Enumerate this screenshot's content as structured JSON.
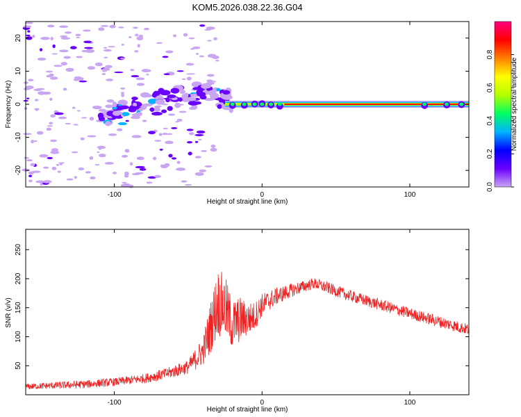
{
  "figure_title": "KOM5.2026.038.22.36.G04",
  "chart_data": [
    {
      "type": "heatmap",
      "title": "KOM5.2026.038.22.36.G04",
      "xlabel": "Height of straight line (km)",
      "ylabel": "Frequency (Hz)",
      "xlim": [
        -160,
        140
      ],
      "ylim": [
        -25,
        25
      ],
      "x_ticks": [
        -100,
        0,
        100
      ],
      "y_ticks": [
        -20,
        -10,
        0,
        10,
        20
      ],
      "grid": false,
      "colorbar": {
        "label": "Normalized spectral amplitude",
        "range": [
          0,
          1
        ],
        "ticks": [
          0.0,
          0.2,
          0.4,
          0.6,
          0.8
        ],
        "colormap": [
          "#ffffff",
          "#c9a6f2",
          "#6a00ff",
          "#0000ff",
          "#00b4ff",
          "#00ff60",
          "#b4ff00",
          "#ffff00",
          "#ff7f00",
          "#ff0000",
          "#ff0080"
        ]
      },
      "features": [
        {
          "name": "scattered weak noise",
          "x_range": [
            -160,
            -30
          ],
          "freq_range": [
            -25,
            25
          ],
          "amplitude": 0.05
        },
        {
          "name": "rising Doppler band",
          "x_range": [
            -110,
            -20
          ],
          "freq_range": [
            -5,
            7
          ],
          "amplitude": 0.25
        },
        {
          "name": "stable carrier line",
          "x_range": [
            -25,
            140
          ],
          "freq_range": [
            -1,
            1
          ],
          "amplitude": 0.9
        }
      ]
    },
    {
      "type": "line",
      "xlabel": "Height of straight line (km)",
      "ylabel": "SNR (v/v)",
      "xlim": [
        -160,
        140
      ],
      "ylim": [
        0,
        285
      ],
      "x_ticks": [
        -100,
        0,
        100
      ],
      "y_ticks": [
        50,
        100,
        150,
        200,
        250
      ],
      "grid": false,
      "series": [
        {
          "name": "SNR",
          "color": "#ee2222",
          "x": [
            -160,
            -140,
            -120,
            -100,
            -80,
            -65,
            -50,
            -40,
            -35,
            -30,
            -25,
            -20,
            -15,
            -10,
            -5,
            0,
            10,
            20,
            30,
            35,
            40,
            60,
            80,
            100,
            120,
            140
          ],
          "y": [
            14,
            16,
            18,
            22,
            28,
            36,
            48,
            75,
            115,
            160,
            150,
            120,
            130,
            130,
            135,
            155,
            170,
            180,
            188,
            192,
            188,
            170,
            155,
            140,
            126,
            112
          ],
          "spread": [
            5,
            6,
            7,
            7,
            8,
            10,
            12,
            25,
            45,
            60,
            55,
            45,
            40,
            30,
            25,
            20,
            15,
            12,
            10,
            10,
            10,
            10,
            10,
            10,
            10,
            10
          ]
        }
      ]
    }
  ]
}
